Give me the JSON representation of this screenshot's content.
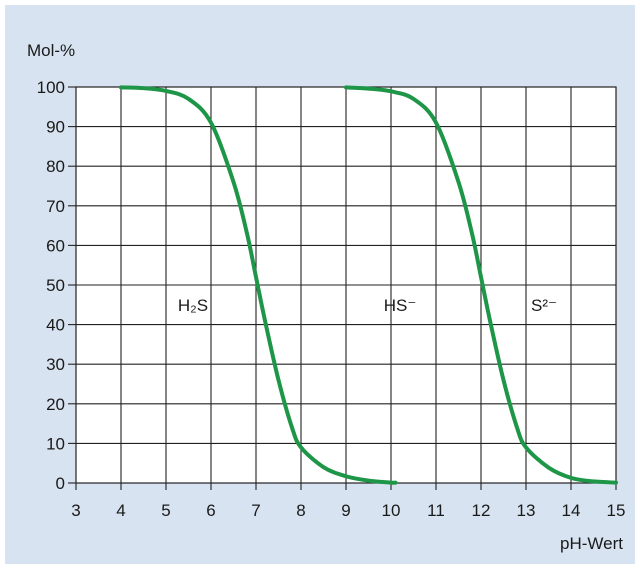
{
  "chart_data": {
    "type": "line",
    "ylabel": "Mol-%",
    "xlabel": "pH-Wert",
    "xlim": [
      3,
      15
    ],
    "ylim": [
      0,
      100
    ],
    "x_ticks": [
      "3",
      "4",
      "5",
      "6",
      "7",
      "8",
      "9",
      "10",
      "11",
      "12",
      "13",
      "14",
      "15"
    ],
    "y_ticks": [
      "0",
      "10",
      "20",
      "30",
      "40",
      "50",
      "60",
      "70",
      "80",
      "90",
      "100"
    ],
    "grid": true,
    "series": [
      {
        "x": [
          4.0,
          4.5,
          5.0,
          5.5,
          6.0,
          6.5,
          6.8,
          7.0,
          7.2,
          7.5,
          7.8,
          8.0,
          8.5,
          9.0,
          9.5,
          10.0,
          10.1
        ],
        "values": [
          99.9,
          99.7,
          99.0,
          97.0,
          91.0,
          76.0,
          63.0,
          52.0,
          41.0,
          26.0,
          14.0,
          9.0,
          4.0,
          1.7,
          0.6,
          0.1,
          0.1
        ]
      },
      {
        "x": [
          9.0,
          9.5,
          10.0,
          10.5,
          11.0,
          11.5,
          11.8,
          12.0,
          12.2,
          12.5,
          12.8,
          13.0,
          13.5,
          14.0,
          14.5,
          15.0
        ],
        "values": [
          99.9,
          99.6,
          98.9,
          97.0,
          91.0,
          76.0,
          63.0,
          52.0,
          41.0,
          26.0,
          14.0,
          9.0,
          3.9,
          1.3,
          0.4,
          0.1
        ]
      }
    ],
    "line_color": "#1e9648",
    "annotations": [
      {
        "text": "H₂S",
        "x": 5.6,
        "y": 45
      },
      {
        "text": "HS⁻",
        "x": 10.2,
        "y": 45
      },
      {
        "text": "S²⁻",
        "x": 13.4,
        "y": 45
      }
    ]
  }
}
